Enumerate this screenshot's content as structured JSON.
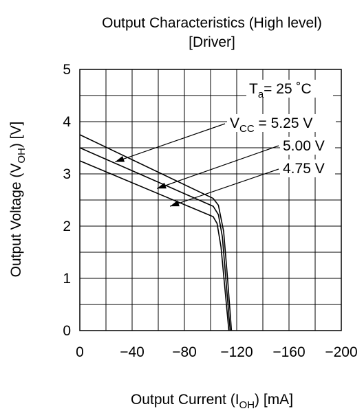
{
  "chart_data": {
    "type": "line",
    "title": "Output Characteristics (High level)",
    "subtitle": "[Driver]",
    "xlabel": "Output Current (IOH)   [mA]",
    "xlabel_parts": {
      "main": "Output Current (I",
      "sub": "OH",
      "tail": ")   [mA]"
    },
    "ylabel": "Output Voltage (VOH)   [V]",
    "ylabel_parts": {
      "main": "Output Voltage (V",
      "sub": "OH",
      "tail": ")   [V]"
    },
    "xlim": [
      0,
      -200
    ],
    "ylim": [
      0,
      5
    ],
    "x_ticks": [
      "0",
      "−40",
      "−80",
      "−120",
      "−160",
      "−200"
    ],
    "x_tick_values": [
      0,
      -40,
      -80,
      -120,
      -160,
      -200
    ],
    "y_ticks": [
      "0",
      "1",
      "2",
      "3",
      "4",
      "5"
    ],
    "y_tick_values": [
      0,
      1,
      2,
      3,
      4,
      5
    ],
    "grid": true,
    "temperature": {
      "prefix": "T",
      "sub": "a",
      "text": "= 25 ˚C"
    },
    "series": [
      {
        "label_prefix": "V",
        "label_sub": "CC",
        "label_text": " = 5.25 V",
        "color": "#000000",
        "points": [
          [
            0,
            3.75
          ],
          [
            -102,
            2.53
          ],
          [
            -106,
            2.4
          ],
          [
            -110,
            1.9
          ],
          [
            -113,
            1.0
          ],
          [
            -116,
            0
          ]
        ]
      },
      {
        "label_text": "5.00 V",
        "color": "#000000",
        "points": [
          [
            0,
            3.5
          ],
          [
            -102,
            2.38
          ],
          [
            -106,
            2.22
          ],
          [
            -109,
            1.8
          ],
          [
            -112,
            0.9
          ],
          [
            -115,
            0
          ]
        ]
      },
      {
        "label_text": "4.75 V",
        "color": "#000000",
        "points": [
          [
            0,
            3.25
          ],
          [
            -102,
            2.18
          ],
          [
            -105,
            2.05
          ],
          [
            -108,
            1.6
          ],
          [
            -111,
            0.8
          ],
          [
            -114,
            0
          ]
        ]
      }
    ]
  }
}
